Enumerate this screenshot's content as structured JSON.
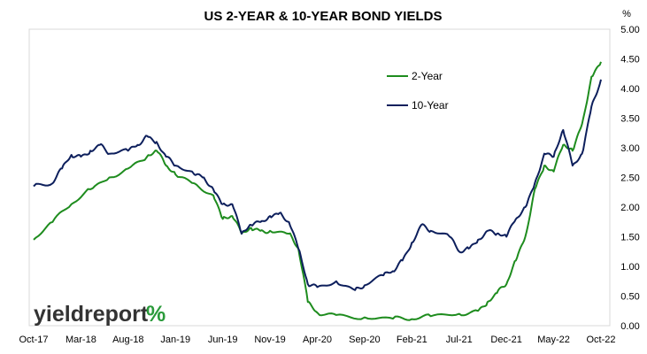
{
  "chart_data": {
    "type": "line",
    "title": "US 2-YEAR & 10-YEAR BOND YIELDS",
    "y_unit": "%",
    "xlabel": "",
    "ylabel": "",
    "x_ticks": [
      "Oct-17",
      "Mar-18",
      "Aug-18",
      "Jan-19",
      "Jun-19",
      "Nov-19",
      "Apr-20",
      "Sep-20",
      "Feb-21",
      "Jul-21",
      "Dec-21",
      "May-22",
      "Oct-22"
    ],
    "y_ticks": [
      "0.00",
      "0.50",
      "1.00",
      "1.50",
      "2.00",
      "2.50",
      "3.00",
      "3.50",
      "4.00",
      "4.50",
      "5.00"
    ],
    "ylim": [
      0,
      5
    ],
    "x_range": [
      "Oct-17",
      "Oct-22"
    ],
    "y_axis_side": "right",
    "grid": false,
    "legend_position": "top-right-inside",
    "series": [
      {
        "name": "2-Year",
        "color": "#1e8c1e",
        "points": [
          [
            "Oct-17",
            1.45
          ],
          [
            "Dec-17",
            1.75
          ],
          [
            "Feb-18",
            2.05
          ],
          [
            "Apr-18",
            2.3
          ],
          [
            "Jun-18",
            2.5
          ],
          [
            "Aug-18",
            2.65
          ],
          [
            "Oct-18",
            2.85
          ],
          [
            "Nov-18",
            2.95
          ],
          [
            "Dec-18",
            2.7
          ],
          [
            "Jan-19",
            2.55
          ],
          [
            "Mar-19",
            2.4
          ],
          [
            "May-19",
            2.2
          ],
          [
            "Jun-19",
            1.8
          ],
          [
            "Jul-19",
            1.85
          ],
          [
            "Aug-19",
            1.55
          ],
          [
            "Sep-19",
            1.65
          ],
          [
            "Oct-19",
            1.6
          ],
          [
            "Nov-19",
            1.6
          ],
          [
            "Jan-20",
            1.55
          ],
          [
            "Feb-20",
            1.3
          ],
          [
            "Mar-20",
            0.4
          ],
          [
            "Apr-20",
            0.22
          ],
          [
            "Jun-20",
            0.18
          ],
          [
            "Sep-20",
            0.14
          ],
          [
            "Dec-20",
            0.12
          ],
          [
            "Feb-21",
            0.11
          ],
          [
            "Apr-21",
            0.16
          ],
          [
            "Jul-21",
            0.2
          ],
          [
            "Sep-21",
            0.25
          ],
          [
            "Oct-21",
            0.4
          ],
          [
            "Nov-21",
            0.55
          ],
          [
            "Dec-21",
            0.7
          ],
          [
            "Jan-22",
            1.1
          ],
          [
            "Feb-22",
            1.5
          ],
          [
            "Mar-22",
            2.3
          ],
          [
            "Apr-22",
            2.7
          ],
          [
            "May-22",
            2.6
          ],
          [
            "Jun-22",
            3.05
          ],
          [
            "Jul-22",
            2.95
          ],
          [
            "Aug-22",
            3.4
          ],
          [
            "Sep-22",
            4.2
          ],
          [
            "Oct-22",
            4.45
          ]
        ]
      },
      {
        "name": "10-Year",
        "color": "#0d1f5c",
        "points": [
          [
            "Oct-17",
            2.35
          ],
          [
            "Dec-17",
            2.4
          ],
          [
            "Jan-18",
            2.65
          ],
          [
            "Feb-18",
            2.88
          ],
          [
            "Mar-18",
            2.85
          ],
          [
            "Apr-18",
            2.95
          ],
          [
            "May-18",
            3.05
          ],
          [
            "Jun-18",
            2.9
          ],
          [
            "Aug-18",
            2.95
          ],
          [
            "Sep-18",
            3.05
          ],
          [
            "Oct-18",
            3.2
          ],
          [
            "Nov-18",
            3.1
          ],
          [
            "Dec-18",
            2.85
          ],
          [
            "Jan-19",
            2.7
          ],
          [
            "Mar-19",
            2.55
          ],
          [
            "Apr-19",
            2.5
          ],
          [
            "May-19",
            2.3
          ],
          [
            "Jun-19",
            2.05
          ],
          [
            "Jul-19",
            2.05
          ],
          [
            "Aug-19",
            1.55
          ],
          [
            "Sep-19",
            1.7
          ],
          [
            "Oct-19",
            1.75
          ],
          [
            "Nov-19",
            1.85
          ],
          [
            "Dec-19",
            1.9
          ],
          [
            "Jan-20",
            1.75
          ],
          [
            "Feb-20",
            1.3
          ],
          [
            "Mar-20",
            0.7
          ],
          [
            "Apr-20",
            0.65
          ],
          [
            "Jun-20",
            0.75
          ],
          [
            "Aug-20",
            0.6
          ],
          [
            "Sep-20",
            0.68
          ],
          [
            "Nov-20",
            0.85
          ],
          [
            "Dec-20",
            0.92
          ],
          [
            "Jan-21",
            1.1
          ],
          [
            "Feb-21",
            1.4
          ],
          [
            "Mar-21",
            1.7
          ],
          [
            "Apr-21",
            1.6
          ],
          [
            "Jun-21",
            1.5
          ],
          [
            "Jul-21",
            1.25
          ],
          [
            "Aug-21",
            1.3
          ],
          [
            "Sep-21",
            1.45
          ],
          [
            "Oct-21",
            1.6
          ],
          [
            "Nov-21",
            1.55
          ],
          [
            "Dec-21",
            1.5
          ],
          [
            "Jan-22",
            1.8
          ],
          [
            "Feb-22",
            2.0
          ],
          [
            "Mar-22",
            2.4
          ],
          [
            "Apr-22",
            2.9
          ],
          [
            "May-22",
            2.85
          ],
          [
            "Jun-22",
            3.3
          ],
          [
            "Jul-22",
            2.7
          ],
          [
            "Aug-22",
            2.9
          ],
          [
            "Sep-22",
            3.7
          ],
          [
            "Oct-22",
            4.15
          ]
        ]
      }
    ]
  },
  "brand": {
    "word": "yieldreport",
    "symbol": "%",
    "word_color": "#333333",
    "symbol_colors": [
      "#2a9a3a",
      "#cc2a2a"
    ]
  }
}
